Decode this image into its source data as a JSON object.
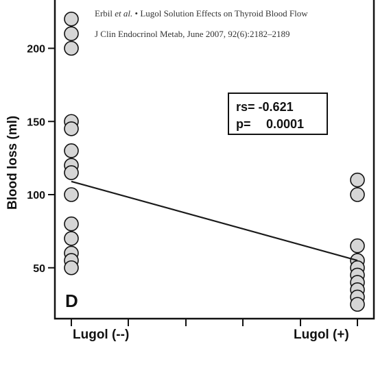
{
  "citation": {
    "authors": "Erbil",
    "etal": "et al.",
    "bullet": "•",
    "title": "Lugol Solution Effects on Thyroid Blood Flow",
    "journal_line": "J Clin Endocrinol Metab, June 2007, 92(6):2182–2189"
  },
  "panel_label": "D",
  "stats": {
    "rs_label": "rs=",
    "rs_value": "-0.621",
    "p_label": "p=",
    "p_value": "0.0001"
  },
  "colors": {
    "marker_fill": "#d6d6d6",
    "marker_stroke": "#111111",
    "line": "#1a1a1a"
  },
  "chart_data": {
    "type": "scatter",
    "title": "",
    "xlabel": "",
    "ylabel": "Blood loss (ml)",
    "categories": [
      "Lugol (--)",
      "Lugol (+)"
    ],
    "yticks": [
      50,
      100,
      150,
      200
    ],
    "ylim": [
      20,
      235
    ],
    "grid": false,
    "series": [
      {
        "category": "Lugol (--)",
        "values": [
          220,
          210,
          200,
          150,
          145,
          130,
          120,
          115,
          100,
          80,
          70,
          60,
          55,
          50
        ]
      },
      {
        "category": "Lugol (+)",
        "values": [
          110,
          100,
          65,
          55,
          50,
          45,
          40,
          35,
          30,
          25
        ]
      }
    ],
    "regression": {
      "start": 109,
      "end": 55
    }
  }
}
